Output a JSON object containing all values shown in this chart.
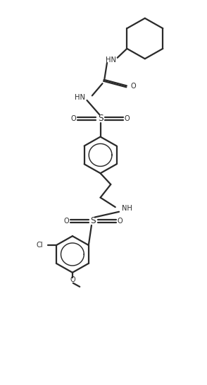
{
  "bg_color": "#ffffff",
  "line_color": "#2a2a2a",
  "lw": 1.6,
  "fig_w": 2.94,
  "fig_h": 5.45,
  "dpi": 100,
  "fs": 6.8,
  "xlim": [
    0,
    10
  ],
  "ylim": [
    0,
    19
  ]
}
